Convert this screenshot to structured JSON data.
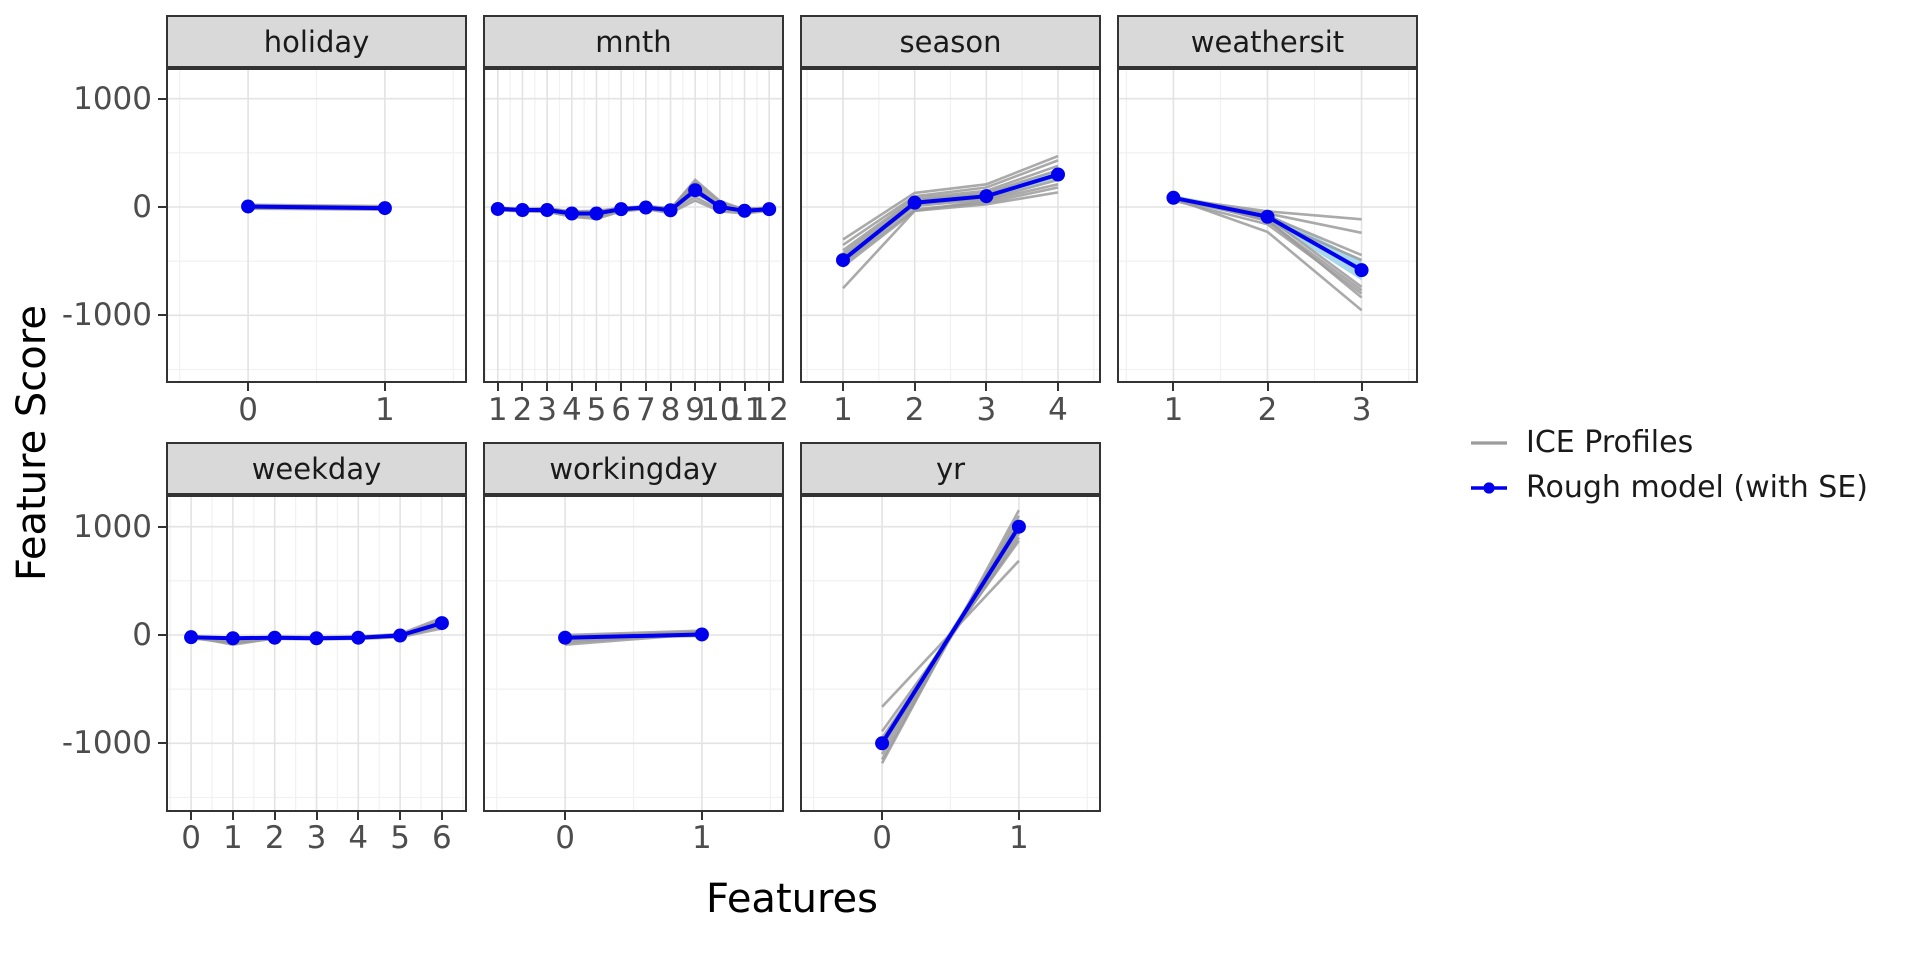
{
  "figure": {
    "x_axis_title": "Features",
    "y_axis_title": "Feature Score",
    "y_tick_labels": [
      "1000",
      "0",
      "-1000"
    ]
  },
  "legend": {
    "items": [
      {
        "label": "ICE Profiles",
        "type": "line",
        "color": "#9B9B9B"
      },
      {
        "label": "Rough model (with SE)",
        "type": "line-point",
        "color": "#0000EE"
      }
    ]
  },
  "colors": {
    "ice": "#9B9B9B",
    "rough_model": "#0000EE",
    "se_ribbon": "#A8D8EA",
    "strip_bg": "#D9D9D9",
    "panel_border": "#333333",
    "grid_major": "#E3E3E3",
    "grid_minor": "#F1F1F1",
    "tick_text": "#4D4D4D"
  },
  "chart_data": {
    "type": "line",
    "faceted": true,
    "title": "",
    "xlabel": "Features",
    "ylabel": "Feature Score",
    "ylim": [
      -1640,
      1285
    ],
    "y_major_ticks": [
      1000,
      0,
      -1000
    ],
    "y_minor_ticks": [
      500,
      -500,
      -1500
    ],
    "grid": true,
    "legend_position": "right",
    "legend": [
      "ICE Profiles",
      "Rough model (with SE)"
    ],
    "facets": [
      {
        "name": "holiday",
        "x": [
          0,
          1
        ],
        "rough_model": [
          5,
          -10
        ],
        "se": [
          12,
          12
        ],
        "ice_profiles": [
          [
            15,
            0
          ],
          [
            8,
            -5
          ],
          [
            0,
            -15
          ],
          [
            -8,
            -20
          ],
          [
            20,
            8
          ],
          [
            -15,
            -25
          ]
        ]
      },
      {
        "name": "mnth",
        "x": [
          1,
          2,
          3,
          4,
          5,
          6,
          7,
          8,
          9,
          10,
          11,
          12
        ],
        "rough_model": [
          -18,
          -28,
          -28,
          -60,
          -60,
          -20,
          -5,
          -30,
          155,
          0,
          -35,
          -20
        ],
        "se": [
          15,
          15,
          15,
          18,
          18,
          15,
          15,
          15,
          35,
          20,
          15,
          15
        ],
        "ice_profiles": [
          [
            -10,
            -20,
            -15,
            -45,
            -40,
            -10,
            5,
            -15,
            230,
            40,
            -20,
            -10
          ],
          [
            -25,
            -35,
            -40,
            -80,
            -95,
            -35,
            -15,
            -45,
            200,
            10,
            -50,
            -30
          ],
          [
            -15,
            -25,
            -20,
            -55,
            -60,
            -15,
            0,
            -25,
            180,
            -10,
            -30,
            -15
          ],
          [
            -20,
            -30,
            -30,
            -70,
            -75,
            -25,
            -10,
            -35,
            90,
            -25,
            -45,
            -25
          ],
          [
            -8,
            -18,
            -12,
            -40,
            -35,
            -8,
            8,
            -10,
            120,
            20,
            -15,
            -8
          ],
          [
            -30,
            -40,
            -45,
            -90,
            -110,
            -40,
            -20,
            -55,
            60,
            -40,
            -60,
            -35
          ],
          [
            -12,
            -22,
            -18,
            -50,
            -50,
            -12,
            2,
            -20,
            250,
            55,
            -25,
            -12
          ],
          [
            -22,
            -32,
            -35,
            -65,
            -70,
            -22,
            -8,
            -40,
            160,
            -5,
            -40,
            -22
          ]
        ]
      },
      {
        "name": "season",
        "x": [
          1,
          2,
          3,
          4
        ],
        "rough_model": [
          -490,
          40,
          100,
          300
        ],
        "se": [
          45,
          30,
          30,
          40
        ],
        "ice_profiles": [
          [
            -300,
            130,
            210,
            470
          ],
          [
            -350,
            100,
            180,
            430
          ],
          [
            -400,
            80,
            150,
            380
          ],
          [
            -430,
            60,
            130,
            340
          ],
          [
            -460,
            30,
            90,
            290
          ],
          [
            -490,
            10,
            70,
            250
          ],
          [
            -520,
            -20,
            40,
            180
          ],
          [
            -550,
            -35,
            25,
            135
          ],
          [
            -750,
            -35,
            60,
            210
          ]
        ]
      },
      {
        "name": "weathersit",
        "x": [
          1,
          2,
          3
        ],
        "rough_model": [
          85,
          -90,
          -583
        ],
        "se": [
          25,
          35,
          95
        ],
        "ice_profiles": [
          [
            80,
            -40,
            -114
          ],
          [
            75,
            -60,
            -238
          ],
          [
            90,
            -80,
            -444
          ],
          [
            70,
            -110,
            -490
          ],
          [
            85,
            -95,
            -738
          ],
          [
            95,
            -130,
            -769
          ],
          [
            60,
            -160,
            -800
          ],
          [
            88,
            -120,
            -836
          ],
          [
            78,
            -230,
            -954
          ]
        ]
      },
      {
        "name": "weekday",
        "x": [
          0,
          1,
          2,
          3,
          4,
          5,
          6
        ],
        "rough_model": [
          -20,
          -30,
          -25,
          -30,
          -25,
          -5,
          110
        ],
        "se": [
          15,
          18,
          12,
          12,
          12,
          15,
          28
        ],
        "ice_profiles": [
          [
            -15,
            -90,
            -30,
            -35,
            -30,
            -15,
            80
          ],
          [
            -25,
            -60,
            -20,
            -25,
            -20,
            0,
            140
          ],
          [
            -10,
            -45,
            -15,
            -20,
            -15,
            10,
            160
          ],
          [
            -30,
            -75,
            -35,
            -40,
            -35,
            -20,
            60
          ],
          [
            -18,
            -55,
            -25,
            -28,
            -22,
            -5,
            100
          ],
          [
            -22,
            -70,
            -28,
            -32,
            -28,
            -10,
            125
          ]
        ]
      },
      {
        "name": "workingday",
        "x": [
          0,
          1
        ],
        "rough_model": [
          -25,
          5
        ],
        "se": [
          18,
          15
        ],
        "ice_profiles": [
          [
            -90,
            10
          ],
          [
            -70,
            18
          ],
          [
            -55,
            8
          ],
          [
            -40,
            25
          ],
          [
            -28,
            -8
          ],
          [
            -15,
            30
          ],
          [
            0,
            40
          ]
        ]
      },
      {
        "name": "yr",
        "x": [
          0,
          1
        ],
        "rough_model": [
          -1000,
          1000
        ],
        "se": [
          45,
          45
        ],
        "ice_profiles": [
          [
            -1184,
            1152
          ],
          [
            -1100,
            1060
          ],
          [
            -1020,
            980
          ],
          [
            -950,
            900
          ],
          [
            -890,
            870
          ],
          [
            -1150,
            1100
          ],
          [
            -663,
            685
          ],
          [
            -1050,
            1010
          ],
          [
            -980,
            940
          ]
        ]
      }
    ]
  }
}
